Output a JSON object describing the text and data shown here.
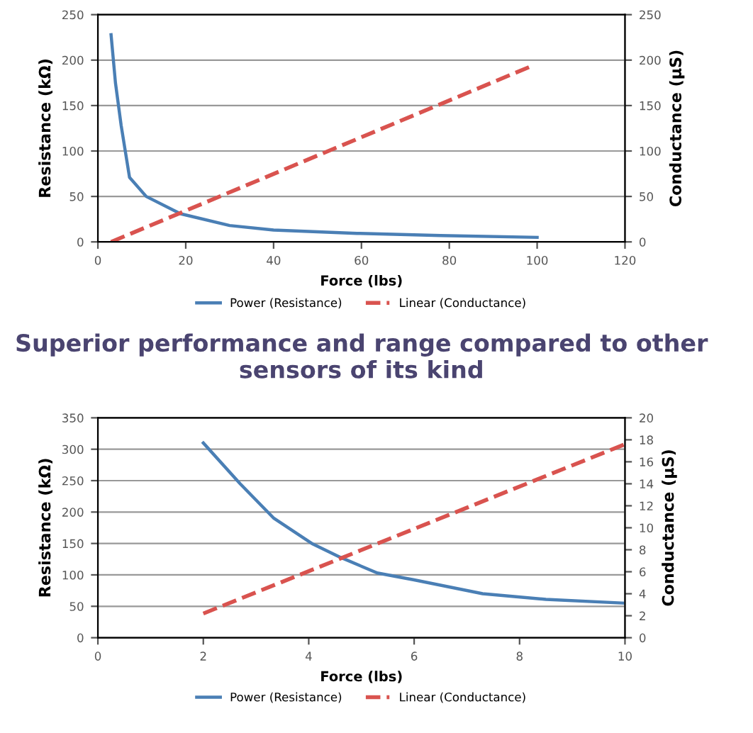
{
  "chart_data": [
    {
      "type": "line",
      "xlabel": "Force (lbs)",
      "ylabel": "Resistance (kΩ)",
      "y2label": "Conductance (µS)",
      "xlim": [
        0,
        120
      ],
      "xticks": [
        0,
        20,
        40,
        60,
        80,
        100,
        120
      ],
      "ylim": [
        0,
        250
      ],
      "yticks": [
        0,
        50,
        100,
        150,
        200,
        250
      ],
      "y2lim": [
        0,
        250
      ],
      "y2ticks": [
        0,
        50,
        100,
        150,
        200,
        250
      ],
      "grid": "y",
      "legend": "bottom",
      "series": [
        {
          "name": "Power (Resistance)",
          "color": "#4a7fb5",
          "line_style": "solid",
          "x": [
            3,
            4,
            5.3,
            7.2,
            11,
            18.8,
            30,
            40,
            59,
            78,
            100
          ],
          "values": [
            228,
            175,
            128,
            71,
            50,
            31,
            18,
            13,
            9.4,
            7,
            5
          ]
        },
        {
          "name": "Linear (Conductance)",
          "color": "#d9534f",
          "line_style": "dashed",
          "axis": "y2",
          "x": [
            3,
            98.5
          ],
          "values": [
            0,
            193
          ]
        }
      ]
    },
    {
      "type": "line",
      "title": "Superior performance and range compared to other sensors of its kind",
      "xlabel": "Force (lbs)",
      "ylabel": "Resistance (kΩ)",
      "y2label": "Conductance (µS)",
      "xlim": [
        0,
        10
      ],
      "xticks": [
        0,
        2,
        4,
        6,
        8,
        10
      ],
      "ylim": [
        0,
        350
      ],
      "yticks": [
        0,
        50,
        100,
        150,
        200,
        250,
        300,
        350
      ],
      "y2lim": [
        0,
        20
      ],
      "y2ticks": [
        0,
        2,
        4,
        6,
        8,
        10,
        12,
        14,
        16,
        18,
        20
      ],
      "grid": "y",
      "legend": "bottom",
      "series": [
        {
          "name": "Power (Resistance)",
          "color": "#4a7fb5",
          "line_style": "solid",
          "x": [
            2,
            2.7,
            3.34,
            4.06,
            4.6,
            5.3,
            6,
            7.3,
            8.5,
            10
          ],
          "values": [
            310,
            245,
            190,
            150,
            128,
            103,
            92,
            70,
            61,
            55
          ]
        },
        {
          "name": "Linear (Conductance)",
          "color": "#d9534f",
          "line_style": "dashed",
          "axis": "y2",
          "x": [
            2,
            10
          ],
          "values": [
            2.2,
            17.6
          ]
        }
      ]
    }
  ]
}
